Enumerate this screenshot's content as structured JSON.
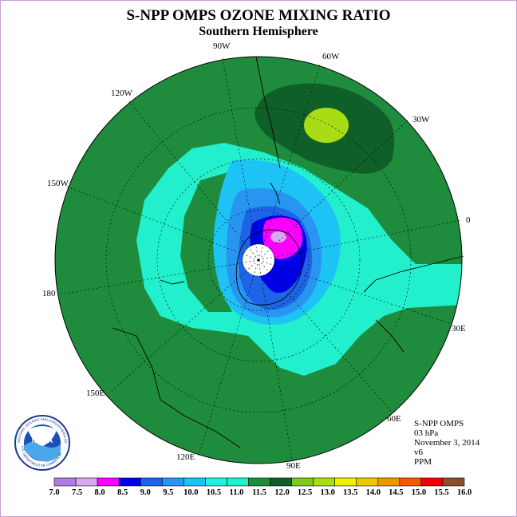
{
  "title": "S-NPP OMPS OZONE MIXING RATIO",
  "subtitle": "Southern Hemisphere",
  "longitude_labels": [
    "90W",
    "60W",
    "120W",
    "30W",
    "150W",
    "0",
    "180",
    "30E",
    "150E",
    "60E",
    "120E",
    "90E"
  ],
  "info": {
    "instrument": "S-NPP OMPS",
    "level": "03 hPa",
    "date": "November 3, 2014",
    "version": "v6",
    "units": "PPM"
  },
  "logo": {
    "name": "NOAA",
    "ring_text": "NATIONAL OCEANIC AND ATMOSPHERIC ADMINISTRATION",
    "ring_text_bottom": "U.S. DEPARTMENT OF COMMERCE"
  },
  "colorbar": {
    "labels": [
      "7.0",
      "7.5",
      "8.0",
      "8.5",
      "9.0",
      "9.5",
      "10.0",
      "10.5",
      "11.0",
      "11.5",
      "12.0",
      "12.5",
      "13.0",
      "13.5",
      "14.0",
      "14.5",
      "15.0",
      "15.5",
      "16.0"
    ],
    "colors": [
      "#b07ae8",
      "#d8a8f0",
      "#ff00ff",
      "#0000e6",
      "#1e64e6",
      "#2896f0",
      "#1ec3f5",
      "#22f0e6",
      "#22f0cc",
      "#1e8c3c",
      "#0e6028",
      "#80c81e",
      "#a8dc14",
      "#f0f000",
      "#f0c800",
      "#f09600",
      "#f05a00",
      "#f00000",
      "#8c5028"
    ]
  },
  "colors": {
    "background_field": "#22f0cc",
    "contour_lines": "#000000",
    "polar_night": "#ffffff"
  }
}
